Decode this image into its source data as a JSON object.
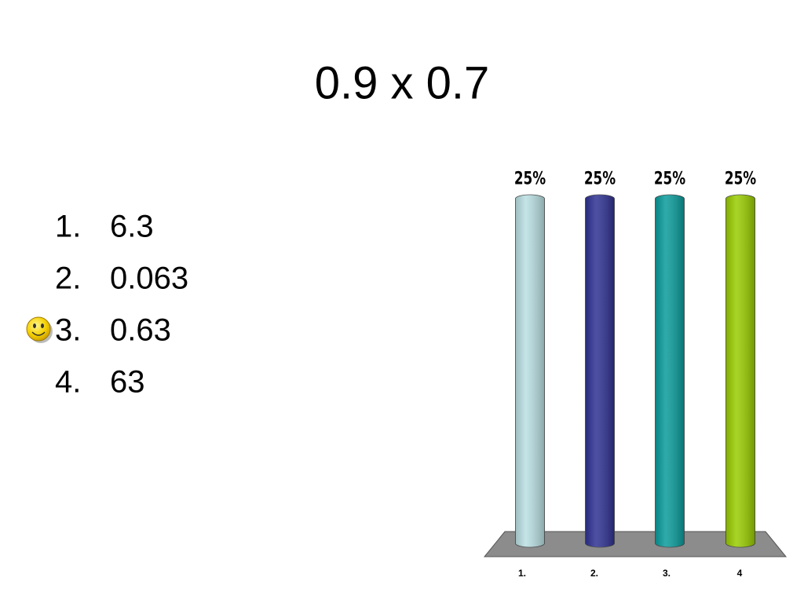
{
  "slide": {
    "title": "0.9 x 0.7",
    "options": [
      {
        "number": "1.",
        "text": "6.3"
      },
      {
        "number": "2.",
        "text": "0.063"
      },
      {
        "number": "3.",
        "text": "0.63"
      },
      {
        "number": "4.",
        "text": "63"
      }
    ]
  },
  "chart_data": {
    "type": "bar",
    "categories": [
      "1.",
      "2.",
      "3.",
      "4"
    ],
    "values": [
      25,
      25,
      25,
      25
    ],
    "value_labels": [
      "25%",
      "25%",
      "25%",
      "25%"
    ],
    "colors": [
      "#b9dfe2",
      "#2e3192",
      "#0a9b9b",
      "#99cc00"
    ]
  }
}
